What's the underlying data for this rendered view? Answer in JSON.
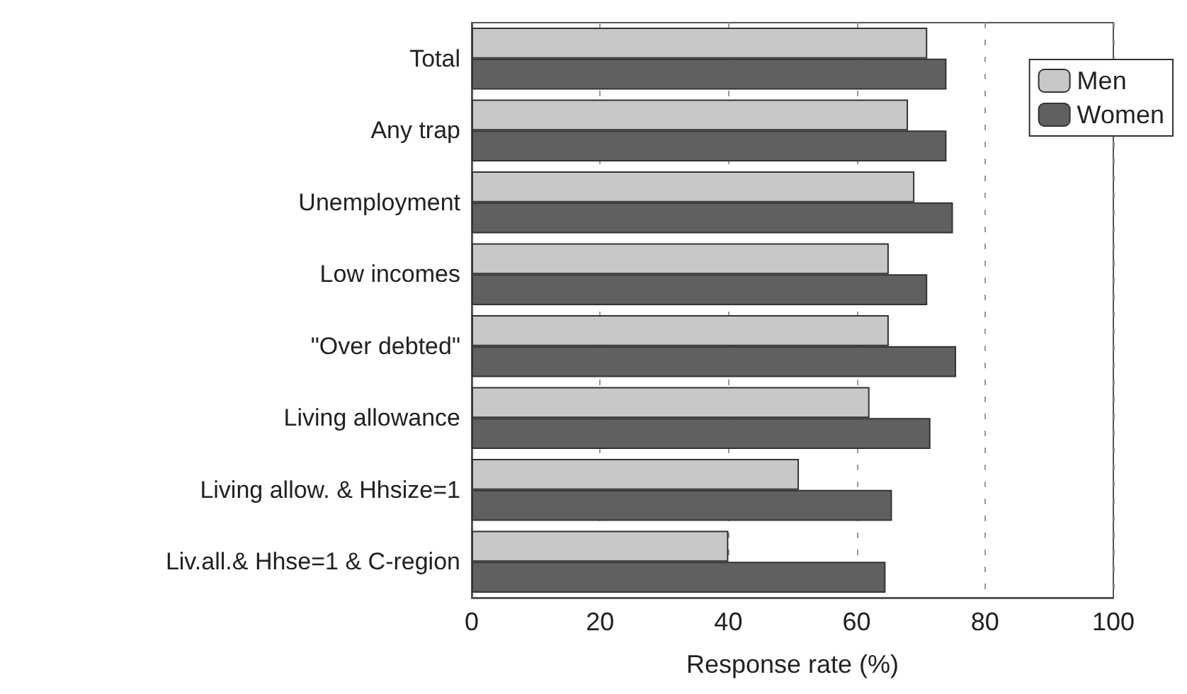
{
  "chart_data": {
    "type": "bar",
    "orientation": "horizontal",
    "xlabel": "Response rate (%)",
    "categories": [
      "Total",
      "Any trap",
      "Unemployment",
      "Low incomes",
      "\"Over debted\"",
      "Living allowance",
      "Living allow. & Hhsize=1",
      "Liv.all.& Hhse=1 & C-region"
    ],
    "series": [
      {
        "name": "Men",
        "color": "#c8c8c8",
        "values": [
          71,
          68,
          69,
          65,
          65,
          62,
          51,
          40
        ]
      },
      {
        "name": "Women",
        "color": "#606060",
        "values": [
          74,
          74,
          75,
          71,
          75.5,
          71.5,
          65.5,
          64.5
        ]
      }
    ],
    "xlim": [
      0,
      100
    ],
    "xticks": [
      0,
      20,
      40,
      60,
      80,
      100
    ],
    "grid": "x",
    "legend": "top right"
  }
}
